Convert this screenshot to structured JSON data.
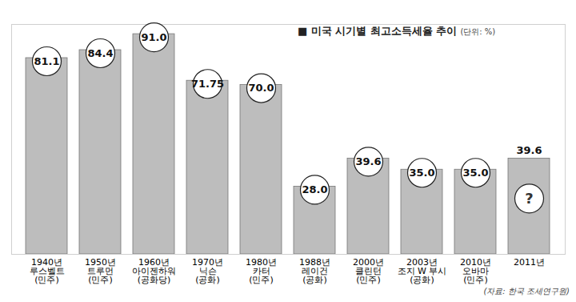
{
  "chart_data": {
    "type": "bar",
    "title": "■ 미국 시기별 최고소득세율 추이",
    "subtitle": "(단위: %)",
    "caption": "(자료: 한국 조세연구원)",
    "categories": [
      "1940년",
      "1950년",
      "1960년",
      "1970년",
      "1980년",
      "1988년",
      "2000년",
      "2003년",
      "2010년",
      "2011년"
    ],
    "presidents": [
      "루스벨트",
      "트루먼",
      "아이젠하워",
      "닉슨",
      "카터",
      "레이건",
      "클린턴",
      "조지 W 부시",
      "오바마",
      null
    ],
    "parties": [
      "(민주)",
      "(민주)",
      "(공화당)",
      "(공화)",
      "(민주)",
      "(공화)",
      "(민주)",
      "(공화)",
      "(민주)",
      null
    ],
    "values": [
      81.1,
      84.4,
      91.0,
      71.75,
      70.0,
      28.0,
      39.6,
      35.0,
      35.0,
      39.6
    ],
    "value_labels": [
      "81.1",
      "84.4",
      "91.0",
      "71.75",
      "70.0",
      "28.0",
      "39.6",
      "35.0",
      "35.0",
      "39.6"
    ],
    "annotations": [
      {
        "category": "2011년",
        "text": "?"
      }
    ],
    "color": "#bdbdbd",
    "ylim": [
      0,
      95
    ],
    "yticks": [],
    "grid": false,
    "data_labels": true,
    "tick_labels": "x"
  }
}
